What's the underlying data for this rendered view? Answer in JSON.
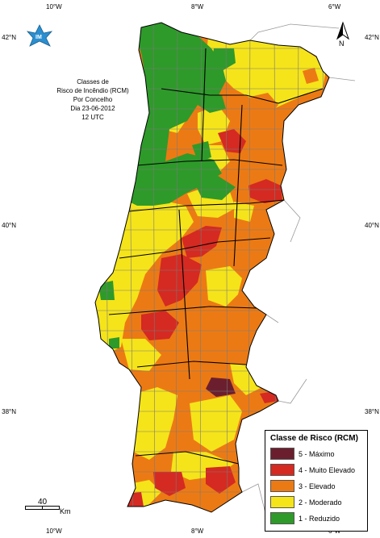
{
  "title_lines": [
    "Classes de",
    "Risco de Incêndio (RCM)",
    "Por Concelho",
    "Dia 23-06-2012",
    "12 UTC"
  ],
  "ticks": {
    "top": [
      "10°W",
      "8°W",
      "6°W"
    ],
    "bottom": [
      "10°W",
      "8°W",
      "6°W"
    ],
    "left": [
      "42°N",
      "40°N",
      "38°N"
    ],
    "right": [
      "42°N",
      "40°N",
      "38°N"
    ]
  },
  "north_label": "N",
  "logo_text": "IM",
  "scale": {
    "value": "40",
    "unit": "Km"
  },
  "legend": {
    "title": "Classe de Risco (RCM)",
    "items": [
      {
        "label": "5 - Máximo",
        "color": "#6b1f2e"
      },
      {
        "label": "4 - Muito Elevado",
        "color": "#d42a22"
      },
      {
        "label": "3 - Elevado",
        "color": "#ec7a14"
      },
      {
        "label": "2 - Moderado",
        "color": "#f5e41a"
      },
      {
        "label": "1 - Reduzido",
        "color": "#2e9a2a"
      }
    ]
  },
  "colors": {
    "maximo": "#6b1f2e",
    "muito_elevado": "#d42a22",
    "elevado": "#ec7a14",
    "moderado": "#f5e41a",
    "reduzido": "#2e9a2a",
    "border": "#7a7a7a",
    "district": "#000000"
  }
}
